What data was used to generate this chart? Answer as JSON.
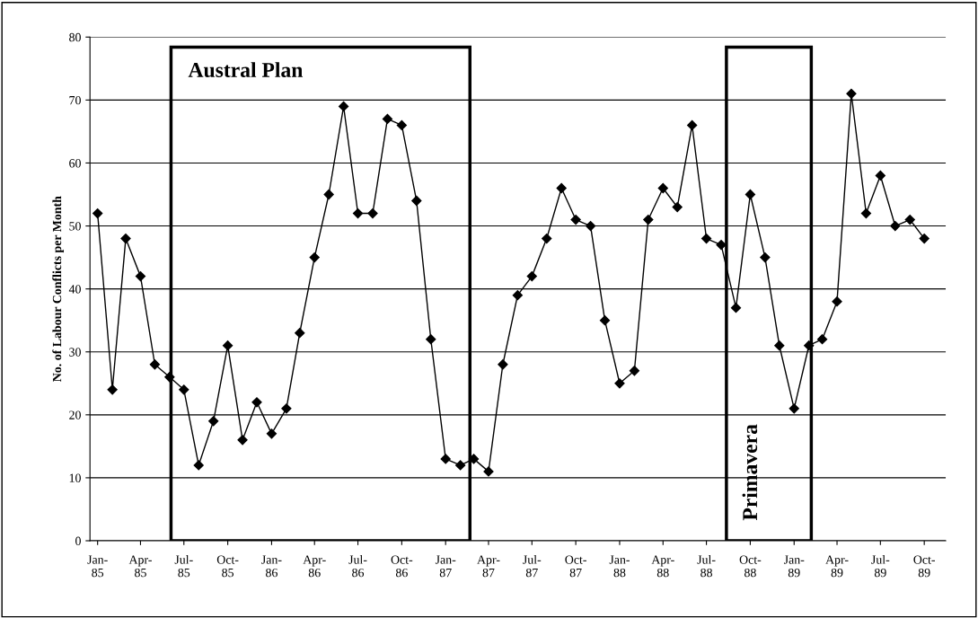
{
  "chart_data": {
    "type": "line",
    "ylabel": "No. of Labour Conflicts per Month",
    "x": [
      "1985-01",
      "1985-02",
      "1985-03",
      "1985-04",
      "1985-05",
      "1985-06",
      "1985-07",
      "1985-08",
      "1985-09",
      "1985-10",
      "1985-11",
      "1985-12",
      "1986-01",
      "1986-02",
      "1986-03",
      "1986-04",
      "1986-05",
      "1986-06",
      "1986-07",
      "1986-08",
      "1986-09",
      "1986-10",
      "1986-11",
      "1986-12",
      "1987-01",
      "1987-02",
      "1987-03",
      "1987-04",
      "1987-05",
      "1987-06",
      "1987-07",
      "1987-08",
      "1987-09",
      "1987-10",
      "1987-11",
      "1987-12",
      "1988-01",
      "1988-02",
      "1988-03",
      "1988-04",
      "1988-05",
      "1988-06",
      "1988-07",
      "1988-08",
      "1988-09",
      "1988-10",
      "1988-11",
      "1988-12",
      "1989-01",
      "1989-02",
      "1989-03",
      "1989-04",
      "1989-05",
      "1989-06",
      "1989-07",
      "1989-08",
      "1989-09",
      "1989-10"
    ],
    "series": [
      {
        "color": "#000000",
        "values": [
          52,
          24,
          48,
          42,
          28,
          26,
          24,
          12,
          19,
          31,
          16,
          22,
          17,
          21,
          33,
          45,
          55,
          69,
          52,
          52,
          67,
          66,
          54,
          32,
          13,
          12,
          13,
          11,
          28,
          39,
          42,
          48,
          56,
          51,
          50,
          35,
          25,
          27,
          51,
          56,
          53,
          66,
          48,
          47,
          37,
          55,
          45,
          31,
          21,
          31,
          32,
          38,
          71,
          52,
          58,
          50,
          51,
          48
        ]
      }
    ],
    "xlim": [
      "1984-12-16",
      "1989-11-15"
    ],
    "xticks": [
      {
        "value": "1985-01",
        "label": "Jan-\n85"
      },
      {
        "value": "1985-04",
        "label": "Apr-\n85"
      },
      {
        "value": "1985-07",
        "label": "Jul-\n85"
      },
      {
        "value": "1985-10",
        "label": "Oct-\n85"
      },
      {
        "value": "1986-01",
        "label": "Jan-\n86"
      },
      {
        "value": "1986-04",
        "label": "Apr-\n86"
      },
      {
        "value": "1986-07",
        "label": "Jul-\n86"
      },
      {
        "value": "1986-10",
        "label": "Oct-\n86"
      },
      {
        "value": "1987-01",
        "label": "Jan-\n87"
      },
      {
        "value": "1987-04",
        "label": "Apr-\n87"
      },
      {
        "value": "1987-07",
        "label": "Jul-\n87"
      },
      {
        "value": "1987-10",
        "label": "Oct-\n87"
      },
      {
        "value": "1988-01",
        "label": "Jan-\n88"
      },
      {
        "value": "1988-04",
        "label": "Apr-\n88"
      },
      {
        "value": "1988-07",
        "label": "Jul-\n88"
      },
      {
        "value": "1988-10",
        "label": "Oct-\n88"
      },
      {
        "value": "1989-01",
        "label": "Jan-\n89"
      },
      {
        "value": "1989-04",
        "label": "Apr-\n89"
      },
      {
        "value": "1989-07",
        "label": "Jul-\n89"
      },
      {
        "value": "1989-10",
        "label": "Oct-\n89"
      }
    ],
    "ylim": [
      0,
      80
    ],
    "yticks": [
      0,
      10,
      20,
      30,
      40,
      50,
      60,
      70,
      80
    ],
    "grid": "y",
    "marker": "diamond",
    "line_style": "solid",
    "bands": [
      {
        "axis": "x",
        "from": "1985-06-04",
        "to": "1987-02-21",
        "label": "Austral Plan",
        "color": "#000000"
      },
      {
        "axis": "x",
        "from": "1988-08-12",
        "to": "1989-02-06",
        "label": "Primavera",
        "color": "#000000"
      }
    ]
  }
}
